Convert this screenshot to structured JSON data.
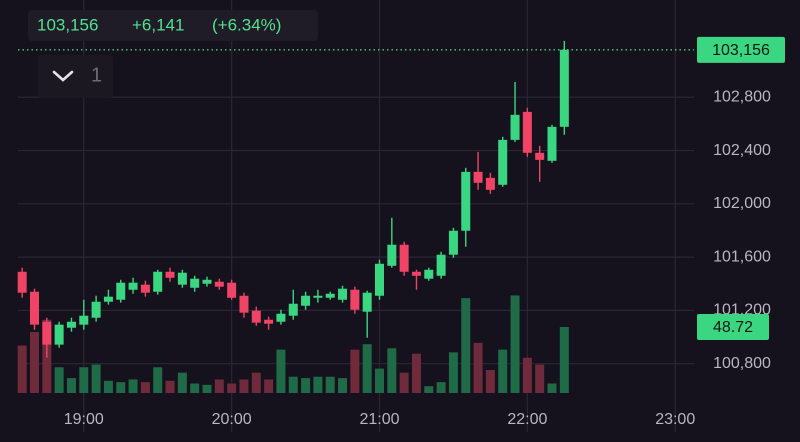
{
  "header": {
    "price": "103,156",
    "change": "+6,141",
    "change_pct": "(+6.34%)",
    "indicator_count": "1"
  },
  "chart_data": {
    "type": "candlestick",
    "x": [
      1115,
      1120,
      1125,
      1130,
      1135,
      1140,
      1145,
      1150,
      1155,
      1160,
      1165,
      1170,
      1175,
      1180,
      1185,
      1190,
      1195,
      1200,
      1205,
      1210,
      1215,
      1220,
      1225,
      1230,
      1235,
      1240,
      1245,
      1250,
      1255,
      1260,
      1265,
      1270,
      1275,
      1280,
      1285,
      1290,
      1295,
      1300,
      1305,
      1310,
      1315,
      1320,
      1325,
      1330,
      1335
    ],
    "open": [
      101490,
      101340,
      101115,
      100943,
      101070,
      101093,
      101145,
      101265,
      101280,
      101355,
      101393,
      101340,
      101490,
      101393,
      101370,
      101400,
      101415,
      101408,
      101310,
      101198,
      101130,
      101115,
      101160,
      101235,
      101295,
      101295,
      101280,
      101355,
      101190,
      101310,
      101535,
      101693,
      101490,
      101438,
      101460,
      101618,
      101798,
      102240,
      102195,
      102143,
      102480,
      102690,
      102383,
      102323,
      102578
    ],
    "high": [
      101520,
      101363,
      101145,
      101115,
      101145,
      101280,
      101310,
      101355,
      101430,
      101445,
      101423,
      101505,
      101520,
      101505,
      101460,
      101453,
      101438,
      101430,
      101333,
      101228,
      101153,
      101205,
      101355,
      101340,
      101355,
      101340,
      101385,
      101378,
      101348,
      101580,
      101895,
      101715,
      101505,
      101520,
      101640,
      101820,
      102270,
      102390,
      102233,
      102503,
      102915,
      102720,
      102435,
      102593,
      103223
    ],
    "low": [
      101295,
      101055,
      100845,
      100920,
      101040,
      101055,
      101115,
      101243,
      101258,
      101325,
      101303,
      101318,
      101415,
      101370,
      101340,
      101378,
      101355,
      101280,
      101145,
      101085,
      101055,
      101093,
      101130,
      101205,
      101258,
      101280,
      101258,
      101175,
      100995,
      101280,
      101520,
      101460,
      101355,
      101423,
      101438,
      101595,
      101678,
      102105,
      102075,
      102128,
      102465,
      102353,
      102165,
      102308,
      102518
    ],
    "close": [
      101333,
      101093,
      100943,
      101093,
      101115,
      101160,
      101265,
      101303,
      101408,
      101408,
      101333,
      101490,
      101445,
      101483,
      101438,
      101430,
      101378,
      101295,
      101183,
      101108,
      101100,
      101175,
      101250,
      101310,
      101310,
      101325,
      101363,
      101205,
      101333,
      101550,
      101693,
      101490,
      101460,
      101505,
      101618,
      101798,
      102240,
      102158,
      102105,
      102480,
      102668,
      102383,
      102330,
      102578,
      103156
    ],
    "volume": [
      35,
      45,
      54,
      19,
      11,
      19,
      21,
      9,
      8,
      10,
      8,
      19,
      9,
      15,
      7,
      6,
      10,
      7,
      10,
      15,
      10,
      32,
      12,
      11,
      12,
      12,
      11,
      32,
      36,
      18,
      33,
      15,
      29,
      5,
      8,
      30,
      70,
      37,
      17,
      32,
      72,
      26,
      21,
      7,
      48.72
    ],
    "up_color": "#3ad682",
    "down_color": "#ef4465",
    "volume_up_color": "#1f6b48",
    "volume_down_color": "#6f2a3c",
    "xlim": [
      1106,
      1386
    ],
    "xticks": [
      {
        "value": 1140,
        "label": "19:00"
      },
      {
        "value": 1200,
        "label": "20:00"
      },
      {
        "value": 1260,
        "label": "21:00"
      },
      {
        "value": 1320,
        "label": "22:00"
      },
      {
        "value": 1380,
        "label": "23:00"
      }
    ],
    "ylim": [
      100580,
      103530
    ],
    "yticks": [
      {
        "value": 100800,
        "label": "100,800"
      },
      {
        "value": 101200,
        "label": "101,200"
      },
      {
        "value": 101600,
        "label": "101,600"
      },
      {
        "value": 102000,
        "label": "102,000"
      },
      {
        "value": 102400,
        "label": "102,400"
      },
      {
        "value": 102800,
        "label": "102,800"
      }
    ],
    "y2lim": [
      0,
      290
    ],
    "grid": true,
    "price_label": "103,156",
    "volume_label": "48.72"
  }
}
